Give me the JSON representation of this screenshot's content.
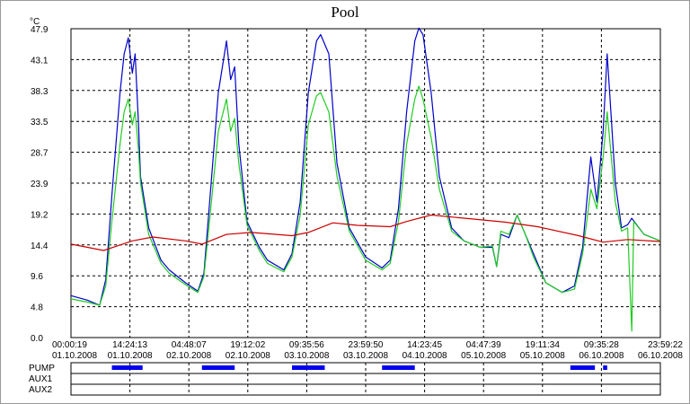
{
  "chart_data": {
    "type": "line",
    "title": "Pool",
    "yunit": "°C",
    "ylim": [
      0.0,
      47.9
    ],
    "yticks": [
      "47.9",
      "43.1",
      "38.3",
      "33.5",
      "28.7",
      "23.9",
      "19.2",
      "14.4",
      "9.6",
      "4.8",
      "0.0"
    ],
    "xlim": [
      "01.10.2008 00:00:19",
      "06.10.2008 23:59:22"
    ],
    "xticks": [
      {
        "time": "00:00:19",
        "date": "01.10.2008"
      },
      {
        "time": "14:24:13",
        "date": "01.10.2008"
      },
      {
        "time": "04:48:07",
        "date": "02.10.2008"
      },
      {
        "time": "19:12:02",
        "date": "02.10.2008"
      },
      {
        "time": "09:35:56",
        "date": "03.10.2008"
      },
      {
        "time": "23:59:50",
        "date": "03.10.2008"
      },
      {
        "time": "14:23:45",
        "date": "04.10.2008"
      },
      {
        "time": "04:47:39",
        "date": "05.10.2008"
      },
      {
        "time": "19:11:34",
        "date": "05.10.2008"
      },
      {
        "time": "09:35:28",
        "date": "06.10.2008"
      },
      {
        "time": "23:59:22",
        "date": "06.10.2008"
      }
    ],
    "grid": true,
    "series": [
      {
        "color": "#0000cc",
        "points": [
          [
            "01.10.2008 00:00",
            6.5
          ],
          [
            "01.10.2008 04:00",
            5.8
          ],
          [
            "01.10.2008 07:00",
            5.0
          ],
          [
            "01.10.2008 08:30",
            9.0
          ],
          [
            "01.10.2008 10:00",
            22.0
          ],
          [
            "01.10.2008 12:00",
            38.0
          ],
          [
            "01.10.2008 13:00",
            44.0
          ],
          [
            "01.10.2008 14:00",
            46.5
          ],
          [
            "01.10.2008 15:00",
            41.0
          ],
          [
            "01.10.2008 15:40",
            44.0
          ],
          [
            "01.10.2008 16:30",
            33.0
          ],
          [
            "01.10.2008 17:00",
            25.0
          ],
          [
            "01.10.2008 19:00",
            17.0
          ],
          [
            "01.10.2008 22:00",
            12.0
          ],
          [
            "02.10.2008 00:00",
            10.5
          ],
          [
            "02.10.2008 04:00",
            8.5
          ],
          [
            "02.10.2008 07:00",
            7.2
          ],
          [
            "02.10.2008 08:30",
            10.0
          ],
          [
            "02.10.2008 10:00",
            22.0
          ],
          [
            "02.10.2008 12:00",
            38.0
          ],
          [
            "02.10.2008 14:00",
            46.0
          ],
          [
            "02.10.2008 15:00",
            40.0
          ],
          [
            "02.10.2008 16:00",
            42.0
          ],
          [
            "02.10.2008 17:00",
            30.0
          ],
          [
            "02.10.2008 19:00",
            18.0
          ],
          [
            "02.10.2008 22:00",
            14.0
          ],
          [
            "03.10.2008 00:00",
            12.0
          ],
          [
            "03.10.2008 04:00",
            10.5
          ],
          [
            "03.10.2008 06:00",
            13.0
          ],
          [
            "03.10.2008 08:00",
            21.0
          ],
          [
            "03.10.2008 10:00",
            38.0
          ],
          [
            "03.10.2008 12:00",
            46.0
          ],
          [
            "03.10.2008 13:00",
            47.0
          ],
          [
            "03.10.2008 15:00",
            44.0
          ],
          [
            "03.10.2008 17:00",
            27.0
          ],
          [
            "03.10.2008 20:00",
            17.0
          ],
          [
            "04.10.2008 00:00",
            12.5
          ],
          [
            "04.10.2008 04:00",
            10.8
          ],
          [
            "04.10.2008 06:00",
            12.0
          ],
          [
            "04.10.2008 08:00",
            20.0
          ],
          [
            "04.10.2008 10:00",
            35.0
          ],
          [
            "04.10.2008 12:00",
            46.0
          ],
          [
            "04.10.2008 13:00",
            48.0
          ],
          [
            "04.10.2008 14:00",
            47.0
          ],
          [
            "04.10.2008 16:00",
            38.0
          ],
          [
            "04.10.2008 18:00",
            25.0
          ],
          [
            "04.10.2008 21:00",
            17.0
          ],
          [
            "05.10.2008 00:00",
            15.0
          ],
          [
            "05.10.2008 04:00",
            14.0
          ],
          [
            "05.10.2008 07:00",
            14.0
          ],
          [
            "05.10.2008 08:00",
            11.0
          ],
          [
            "05.10.2008 09:00",
            16.0
          ],
          [
            "05.10.2008 11:00",
            15.5
          ],
          [
            "05.10.2008 13:00",
            19.0
          ],
          [
            "05.10.2008 15:00",
            16.0
          ],
          [
            "05.10.2008 17:00",
            13.0
          ],
          [
            "05.10.2008 20:00",
            8.5
          ],
          [
            "06.10.2008 00:00",
            7.0
          ],
          [
            "06.10.2008 03:00",
            8.0
          ],
          [
            "06.10.2008 05:00",
            14.0
          ],
          [
            "06.10.2008 07:00",
            28.0
          ],
          [
            "06.10.2008 08:30",
            21.0
          ],
          [
            "06.10.2008 10:00",
            32.0
          ],
          [
            "06.10.2008 11:00",
            44.0
          ],
          [
            "06.10.2008 12:00",
            34.0
          ],
          [
            "06.10.2008 13:00",
            24.0
          ],
          [
            "06.10.2008 14:30",
            17.0
          ],
          [
            "06.10.2008 16:00",
            17.5
          ],
          [
            "06.10.2008 17:00",
            18.5
          ],
          [
            "06.10.2008 20:00",
            16.0
          ],
          [
            "06.10.2008 24:00",
            15.0
          ]
        ]
      },
      {
        "color": "#22cc22",
        "points": [
          [
            "01.10.2008 00:00",
            6.0
          ],
          [
            "01.10.2008 04:00",
            5.5
          ],
          [
            "01.10.2008 07:00",
            5.0
          ],
          [
            "01.10.2008 08:30",
            8.0
          ],
          [
            "01.10.2008 10:00",
            18.0
          ],
          [
            "01.10.2008 12:00",
            30.0
          ],
          [
            "01.10.2008 13:00",
            35.0
          ],
          [
            "01.10.2008 14:00",
            37.0
          ],
          [
            "01.10.2008 15:00",
            33.0
          ],
          [
            "01.10.2008 15:40",
            35.0
          ],
          [
            "01.10.2008 16:30",
            29.0
          ],
          [
            "01.10.2008 17:00",
            24.0
          ],
          [
            "01.10.2008 19:00",
            16.0
          ],
          [
            "01.10.2008 22:00",
            11.5
          ],
          [
            "02.10.2008 00:00",
            10.0
          ],
          [
            "02.10.2008 04:00",
            8.2
          ],
          [
            "02.10.2008 07:00",
            7.0
          ],
          [
            "02.10.2008 08:30",
            9.5
          ],
          [
            "02.10.2008 10:00",
            19.0
          ],
          [
            "02.10.2008 12:00",
            32.0
          ],
          [
            "02.10.2008 14:00",
            37.0
          ],
          [
            "02.10.2008 15:00",
            32.0
          ],
          [
            "02.10.2008 16:00",
            34.0
          ],
          [
            "02.10.2008 17:00",
            27.0
          ],
          [
            "02.10.2008 19:00",
            17.5
          ],
          [
            "02.10.2008 22:00",
            13.5
          ],
          [
            "03.10.2008 00:00",
            11.5
          ],
          [
            "03.10.2008 04:00",
            10.2
          ],
          [
            "03.10.2008 06:00",
            12.5
          ],
          [
            "03.10.2008 08:00",
            19.0
          ],
          [
            "03.10.2008 10:00",
            33.0
          ],
          [
            "03.10.2008 12:00",
            37.5
          ],
          [
            "03.10.2008 13:00",
            38.0
          ],
          [
            "03.10.2008 15:00",
            35.0
          ],
          [
            "03.10.2008 17:00",
            25.0
          ],
          [
            "03.10.2008 20:00",
            16.5
          ],
          [
            "04.10.2008 00:00",
            12.0
          ],
          [
            "04.10.2008 04:00",
            10.5
          ],
          [
            "04.10.2008 06:00",
            11.5
          ],
          [
            "04.10.2008 08:00",
            18.0
          ],
          [
            "04.10.2008 10:00",
            30.0
          ],
          [
            "04.10.2008 12:00",
            37.0
          ],
          [
            "04.10.2008 13:00",
            39.0
          ],
          [
            "04.10.2008 14:00",
            37.0
          ],
          [
            "04.10.2008 16:00",
            31.0
          ],
          [
            "04.10.2008 18:00",
            23.0
          ],
          [
            "04.10.2008 21:00",
            16.5
          ],
          [
            "05.10.2008 00:00",
            15.0
          ],
          [
            "05.10.2008 04:00",
            14.0
          ],
          [
            "05.10.2008 07:00",
            14.2
          ],
          [
            "05.10.2008 08:00",
            11.0
          ],
          [
            "05.10.2008 09:00",
            16.5
          ],
          [
            "05.10.2008 11:00",
            16.0
          ],
          [
            "05.10.2008 13:00",
            19.0
          ],
          [
            "05.10.2008 15:00",
            16.0
          ],
          [
            "05.10.2008 17:00",
            12.5
          ],
          [
            "05.10.2008 20:00",
            8.5
          ],
          [
            "06.10.2008 00:00",
            7.0
          ],
          [
            "06.10.2008 03:00",
            7.5
          ],
          [
            "06.10.2008 05:00",
            13.0
          ],
          [
            "06.10.2008 07:00",
            23.0
          ],
          [
            "06.10.2008 08:30",
            20.0
          ],
          [
            "06.10.2008 10:00",
            28.0
          ],
          [
            "06.10.2008 11:00",
            35.0
          ],
          [
            "06.10.2008 12:00",
            28.0
          ],
          [
            "06.10.2008 13:00",
            21.0
          ],
          [
            "06.10.2008 14:30",
            16.5
          ],
          [
            "06.10.2008 16:00",
            17.0
          ],
          [
            "06.10.2008 17:00",
            1.0
          ],
          [
            "06.10.2008 17:30",
            18.0
          ],
          [
            "06.10.2008 20:00",
            16.0
          ],
          [
            "06.10.2008 24:00",
            15.0
          ]
        ]
      },
      {
        "color": "#cc0000",
        "points": [
          [
            "01.10.2008 00:00",
            14.5
          ],
          [
            "01.10.2008 08:00",
            13.5
          ],
          [
            "01.10.2008 15:00",
            15.0
          ],
          [
            "01.10.2008 20:00",
            15.6
          ],
          [
            "02.10.2008 04:00",
            15.0
          ],
          [
            "02.10.2008 08:00",
            14.5
          ],
          [
            "02.10.2008 14:00",
            16.0
          ],
          [
            "02.10.2008 20:00",
            16.3
          ],
          [
            "03.10.2008 06:00",
            15.8
          ],
          [
            "03.10.2008 10:00",
            16.3
          ],
          [
            "03.10.2008 16:00",
            17.8
          ],
          [
            "03.10.2008 22:00",
            17.4
          ],
          [
            "04.10.2008 06:00",
            17.2
          ],
          [
            "04.10.2008 10:00",
            18.0
          ],
          [
            "04.10.2008 16:00",
            19.0
          ],
          [
            "05.10.2008 02:00",
            18.4
          ],
          [
            "05.10.2008 10:00",
            17.9
          ],
          [
            "05.10.2008 18:00",
            17.2
          ],
          [
            "06.10.2008 04:00",
            15.8
          ],
          [
            "06.10.2008 10:00",
            14.8
          ],
          [
            "06.10.2008 16:00",
            15.2
          ],
          [
            "06.10.2008 24:00",
            14.9
          ]
        ]
      }
    ],
    "channels": [
      {
        "name": "PUMP",
        "color": "#0000ee",
        "on": [
          [
            "01.10.2008 10:00",
            "01.10.2008 17:30"
          ],
          [
            "02.10.2008 08:00",
            "02.10.2008 16:00"
          ],
          [
            "03.10.2008 06:00",
            "03.10.2008 14:00"
          ],
          [
            "04.10.2008 04:00",
            "04.10.2008 12:00"
          ],
          [
            "06.10.2008 02:00",
            "06.10.2008 08:00"
          ],
          [
            "06.10.2008 10:00",
            "06.10.2008 11:00"
          ]
        ]
      },
      {
        "name": "AUX1",
        "color": "#0000ee",
        "on": []
      },
      {
        "name": "AUX2",
        "color": "#0000ee",
        "on": []
      }
    ]
  }
}
